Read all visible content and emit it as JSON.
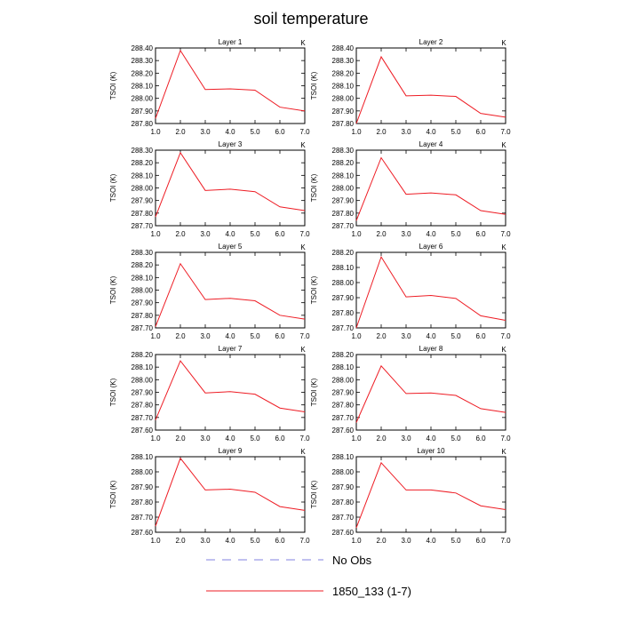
{
  "title": "soil temperature",
  "legend": [
    {
      "label": "No Obs",
      "color": "#8080e0",
      "style": "dashed"
    },
    {
      "label": "1850_133 (1-7)",
      "color": "#ee1c24",
      "style": "solid"
    }
  ],
  "chart_data": [
    {
      "type": "line",
      "title": "Layer 1",
      "unit": "K",
      "ylabel": "TSOI  (K)",
      "xlim": [
        1,
        7
      ],
      "x_ticks": [
        "1.0",
        "2.0",
        "3.0",
        "4.0",
        "5.0",
        "6.0",
        "7.0"
      ],
      "ylim": [
        287.8,
        288.4
      ],
      "y_ticks": [
        "287.80",
        "287.90",
        "288.00",
        "288.10",
        "288.20",
        "288.30",
        "288.40"
      ],
      "series": [
        {
          "name": "1850_133 (1-7)",
          "color": "#ee1c24",
          "x": [
            1,
            2,
            3,
            4,
            5,
            6,
            7
          ],
          "values": [
            287.84,
            288.38,
            288.07,
            288.075,
            288.065,
            287.93,
            287.9
          ]
        }
      ]
    },
    {
      "type": "line",
      "title": "Layer 2",
      "unit": "K",
      "ylabel": "TSOI  (K)",
      "xlim": [
        1,
        7
      ],
      "x_ticks": [
        "1.0",
        "2.0",
        "3.0",
        "4.0",
        "5.0",
        "6.0",
        "7.0"
      ],
      "ylim": [
        287.8,
        288.4
      ],
      "y_ticks": [
        "287.80",
        "287.90",
        "288.00",
        "288.10",
        "288.20",
        "288.30",
        "288.40"
      ],
      "series": [
        {
          "name": "1850_133 (1-7)",
          "color": "#ee1c24",
          "x": [
            1,
            2,
            3,
            4,
            5,
            6,
            7
          ],
          "values": [
            287.8,
            288.33,
            288.02,
            288.025,
            288.015,
            287.88,
            287.85
          ]
        }
      ]
    },
    {
      "type": "line",
      "title": "Layer 3",
      "unit": "K",
      "ylabel": "TSOI  (K)",
      "xlim": [
        1,
        7
      ],
      "x_ticks": [
        "1.0",
        "2.0",
        "3.0",
        "4.0",
        "5.0",
        "6.0",
        "7.0"
      ],
      "ylim": [
        287.7,
        288.3
      ],
      "y_ticks": [
        "287.70",
        "287.80",
        "287.90",
        "288.00",
        "288.10",
        "288.20",
        "288.30"
      ],
      "series": [
        {
          "name": "1850_133 (1-7)",
          "color": "#ee1c24",
          "x": [
            1,
            2,
            3,
            4,
            5,
            6,
            7
          ],
          "values": [
            287.77,
            288.28,
            287.98,
            287.99,
            287.97,
            287.85,
            287.82
          ]
        }
      ]
    },
    {
      "type": "line",
      "title": "Layer 4",
      "unit": "K",
      "ylabel": "TSOI  (K)",
      "xlim": [
        1,
        7
      ],
      "x_ticks": [
        "1.0",
        "2.0",
        "3.0",
        "4.0",
        "5.0",
        "6.0",
        "7.0"
      ],
      "ylim": [
        287.7,
        288.3
      ],
      "y_ticks": [
        "287.70",
        "287.80",
        "287.90",
        "288.00",
        "288.10",
        "288.20",
        "288.30"
      ],
      "series": [
        {
          "name": "1850_133 (1-7)",
          "color": "#ee1c24",
          "x": [
            1,
            2,
            3,
            4,
            5,
            6,
            7
          ],
          "values": [
            287.74,
            288.24,
            287.95,
            287.96,
            287.945,
            287.82,
            287.79
          ]
        }
      ]
    },
    {
      "type": "line",
      "title": "Layer 5",
      "unit": "K",
      "ylabel": "TSOI  (K)",
      "xlim": [
        1,
        7
      ],
      "x_ticks": [
        "1.0",
        "2.0",
        "3.0",
        "4.0",
        "5.0",
        "6.0",
        "7.0"
      ],
      "ylim": [
        287.7,
        288.3
      ],
      "y_ticks": [
        "287.70",
        "287.80",
        "287.90",
        "288.00",
        "288.10",
        "288.20",
        "288.30"
      ],
      "series": [
        {
          "name": "1850_133 (1-7)",
          "color": "#ee1c24",
          "x": [
            1,
            2,
            3,
            4,
            5,
            6,
            7
          ],
          "values": [
            287.71,
            288.21,
            287.925,
            287.935,
            287.915,
            287.8,
            287.77
          ]
        }
      ]
    },
    {
      "type": "line",
      "title": "Layer 6",
      "unit": "K",
      "ylabel": "TSOI  (K)",
      "xlim": [
        1,
        7
      ],
      "x_ticks": [
        "1.0",
        "2.0",
        "3.0",
        "4.0",
        "5.0",
        "6.0",
        "7.0"
      ],
      "ylim": [
        287.7,
        288.2
      ],
      "y_ticks": [
        "287.70",
        "287.80",
        "287.90",
        "288.00",
        "288.10",
        "288.20"
      ],
      "series": [
        {
          "name": "1850_133 (1-7)",
          "color": "#ee1c24",
          "x": [
            1,
            2,
            3,
            4,
            5,
            6,
            7
          ],
          "values": [
            287.7,
            288.17,
            287.905,
            287.915,
            287.895,
            287.78,
            287.75
          ]
        }
      ]
    },
    {
      "type": "line",
      "title": "Layer 7",
      "unit": "K",
      "ylabel": "TSOI  (K)",
      "xlim": [
        1,
        7
      ],
      "x_ticks": [
        "1.0",
        "2.0",
        "3.0",
        "4.0",
        "5.0",
        "6.0",
        "7.0"
      ],
      "ylim": [
        287.6,
        288.2
      ],
      "y_ticks": [
        "287.60",
        "287.70",
        "287.80",
        "287.90",
        "288.00",
        "288.10",
        "288.20"
      ],
      "series": [
        {
          "name": "1850_133 (1-7)",
          "color": "#ee1c24",
          "x": [
            1,
            2,
            3,
            4,
            5,
            6,
            7
          ],
          "values": [
            287.68,
            288.15,
            287.895,
            287.905,
            287.885,
            287.775,
            287.745
          ]
        }
      ]
    },
    {
      "type": "line",
      "title": "Layer 8",
      "unit": "K",
      "ylabel": "TSOI  (K)",
      "xlim": [
        1,
        7
      ],
      "x_ticks": [
        "1.0",
        "2.0",
        "3.0",
        "4.0",
        "5.0",
        "6.0",
        "7.0"
      ],
      "ylim": [
        287.6,
        288.2
      ],
      "y_ticks": [
        "287.60",
        "287.70",
        "287.80",
        "287.90",
        "288.00",
        "288.10",
        "288.20"
      ],
      "series": [
        {
          "name": "1850_133 (1-7)",
          "color": "#ee1c24",
          "x": [
            1,
            2,
            3,
            4,
            5,
            6,
            7
          ],
          "values": [
            287.66,
            288.11,
            287.89,
            287.895,
            287.875,
            287.77,
            287.74
          ]
        }
      ]
    },
    {
      "type": "line",
      "title": "Layer 9",
      "unit": "K",
      "ylabel": "TSOI  (K)",
      "xlim": [
        1,
        7
      ],
      "x_ticks": [
        "1.0",
        "2.0",
        "3.0",
        "4.0",
        "5.0",
        "6.0",
        "7.0"
      ],
      "ylim": [
        287.6,
        288.1
      ],
      "y_ticks": [
        "287.60",
        "287.70",
        "287.80",
        "287.90",
        "288.00",
        "288.10"
      ],
      "series": [
        {
          "name": "1850_133 (1-7)",
          "color": "#ee1c24",
          "x": [
            1,
            2,
            3,
            4,
            5,
            6,
            7
          ],
          "values": [
            287.64,
            288.09,
            287.88,
            287.885,
            287.865,
            287.77,
            287.745
          ]
        }
      ]
    },
    {
      "type": "line",
      "title": "Layer 10",
      "unit": "K",
      "ylabel": "TSOI  (K)",
      "xlim": [
        1,
        7
      ],
      "x_ticks": [
        "1.0",
        "2.0",
        "3.0",
        "4.0",
        "5.0",
        "6.0",
        "7.0"
      ],
      "ylim": [
        287.6,
        288.1
      ],
      "y_ticks": [
        "287.60",
        "287.70",
        "287.80",
        "287.90",
        "288.00",
        "288.10"
      ],
      "series": [
        {
          "name": "1850_133 (1-7)",
          "color": "#ee1c24",
          "x": [
            1,
            2,
            3,
            4,
            5,
            6,
            7
          ],
          "values": [
            287.63,
            288.06,
            287.88,
            287.88,
            287.86,
            287.775,
            287.75
          ]
        }
      ]
    }
  ]
}
